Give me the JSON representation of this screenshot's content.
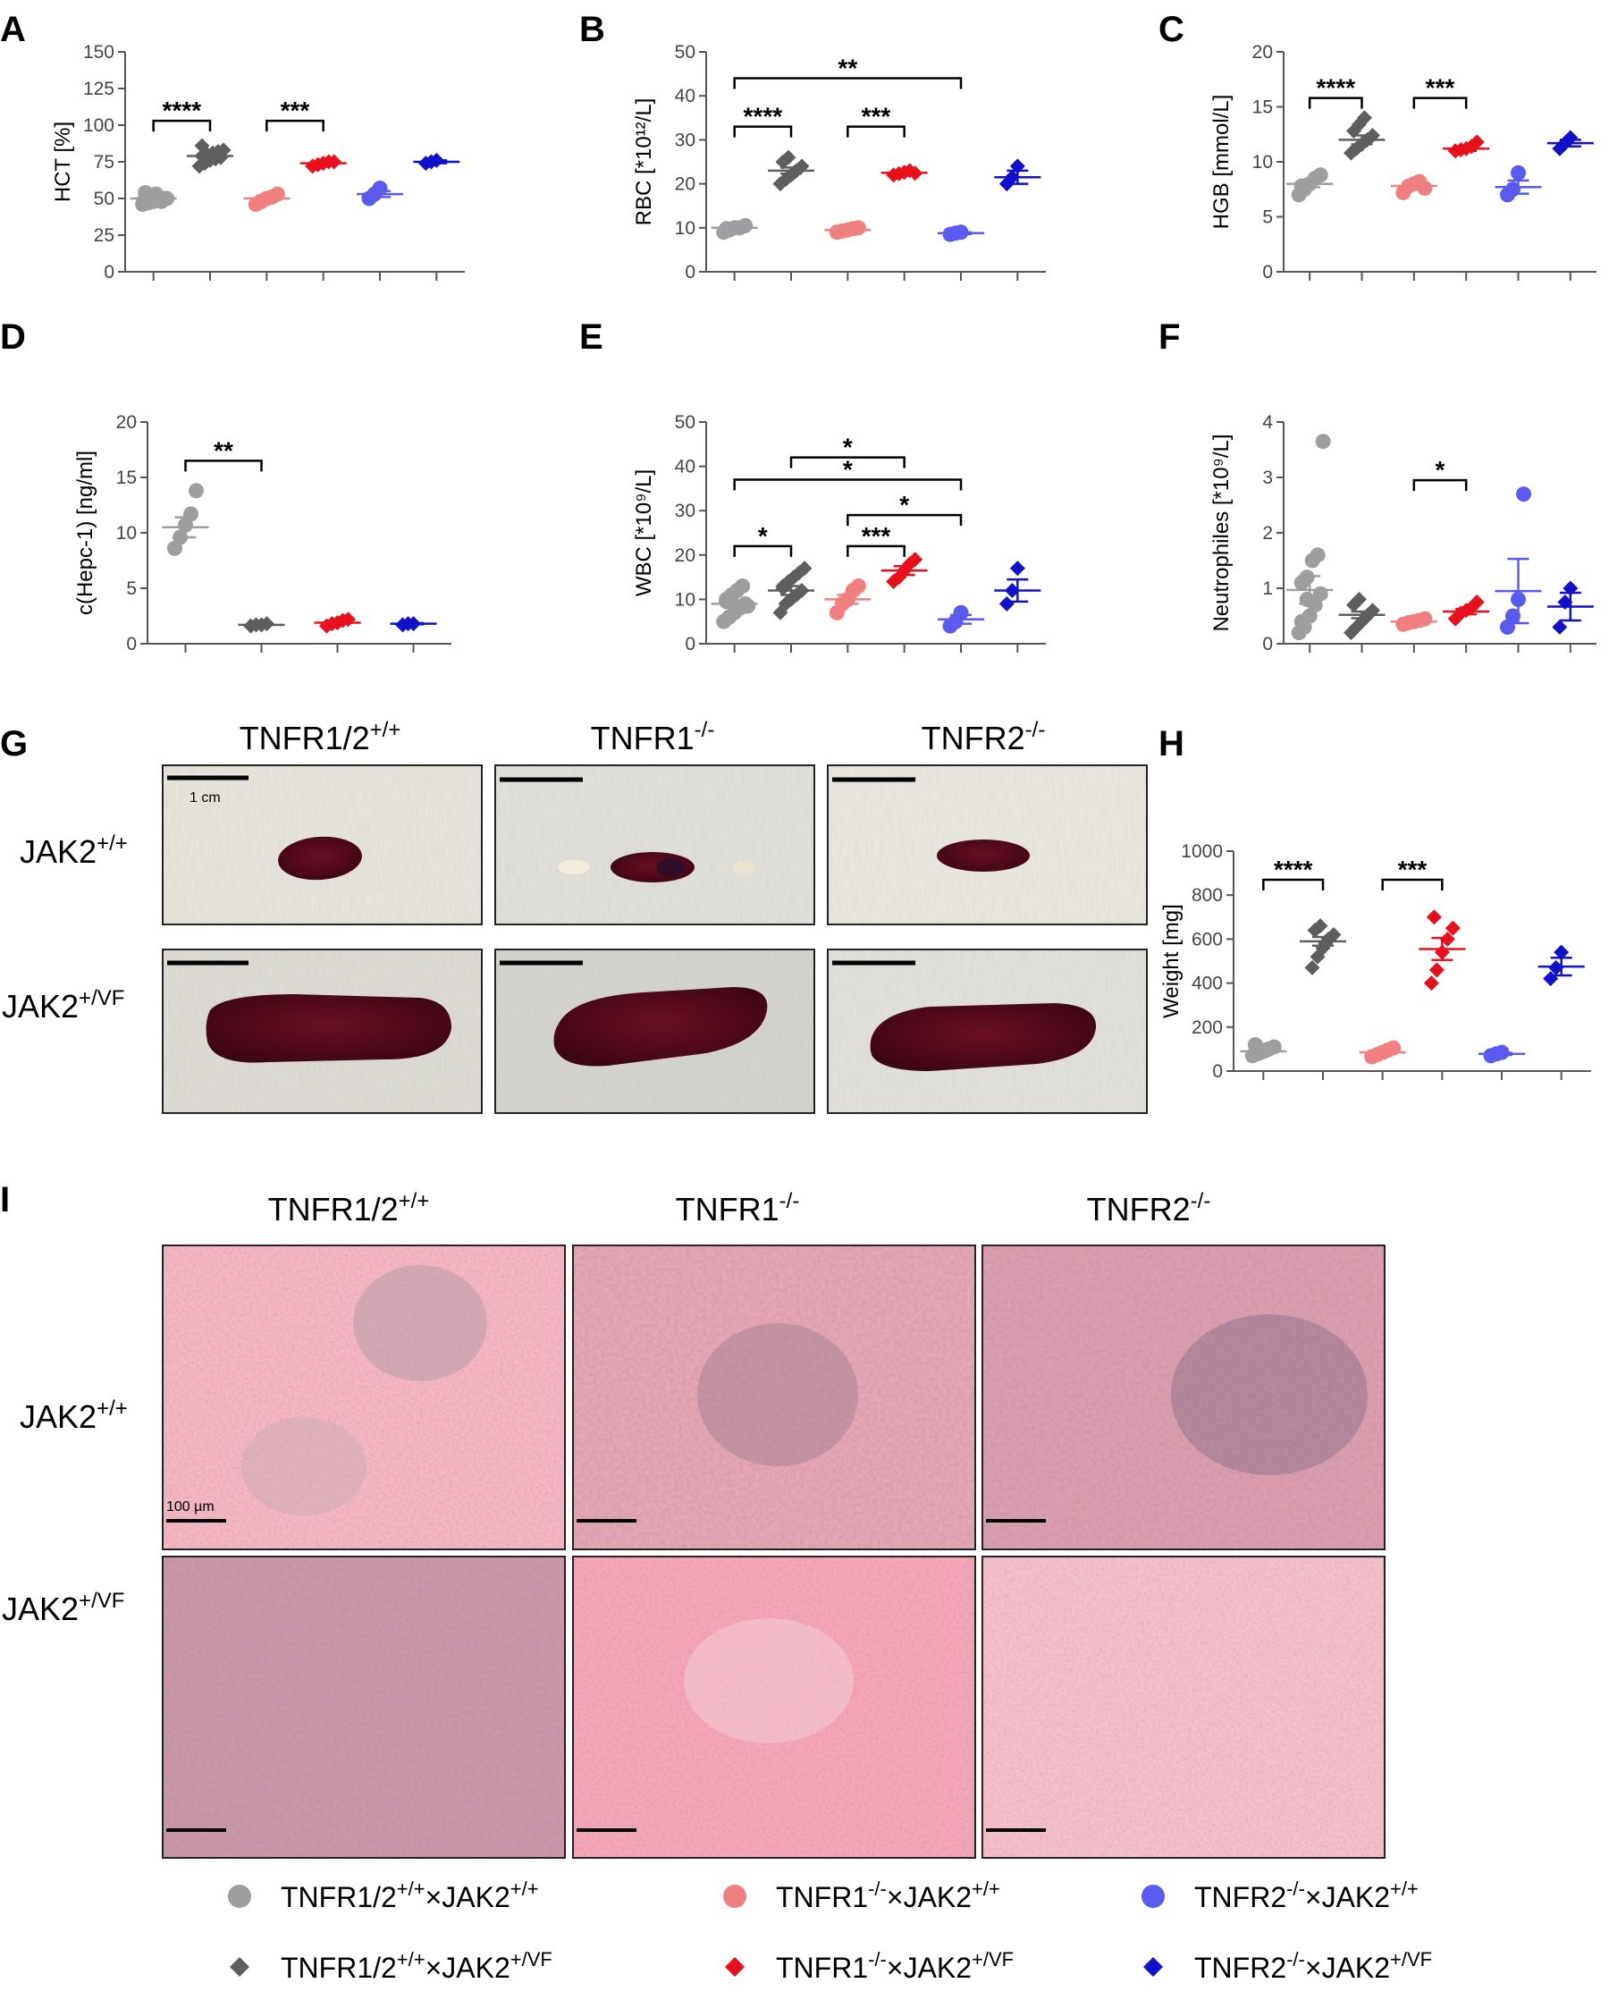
{
  "panel_labels": [
    "A",
    "B",
    "C",
    "D",
    "E",
    "F",
    "G",
    "H",
    "I"
  ],
  "colors": {
    "wt_ctrl": "#9e9ea0",
    "wt_vf": "#5e5e5e",
    "r1_ctrl": "#f08080",
    "r1_vf": "#e8101a",
    "r2_ctrl": "#5a5af0",
    "r2_vf": "#1111cc"
  },
  "chart_data": [
    {
      "panel": "A",
      "type": "scatter",
      "ylabel": "HCT [%]",
      "ylim": [
        0,
        150
      ],
      "yticks": [
        0,
        25,
        50,
        75,
        100,
        125,
        150
      ],
      "groups": [
        {
          "group": "wt_ctrl",
          "mean": 50,
          "sem": 2,
          "values": [
            46,
            47,
            48,
            49,
            50,
            51,
            52,
            53,
            48,
            50,
            54
          ]
        },
        {
          "group": "wt_vf",
          "mean": 79,
          "sem": 2,
          "values": [
            72,
            74,
            76,
            77,
            78,
            79,
            80,
            81,
            82,
            83,
            86
          ]
        },
        {
          "group": "r1_ctrl",
          "mean": 50,
          "sem": 2,
          "values": [
            46,
            48,
            50,
            51,
            53
          ]
        },
        {
          "group": "r1_vf",
          "mean": 74,
          "sem": 1,
          "values": [
            72,
            73,
            74,
            75,
            75
          ]
        },
        {
          "group": "r2_ctrl",
          "mean": 53,
          "sem": 2,
          "values": [
            50,
            53,
            57
          ]
        },
        {
          "group": "r2_vf",
          "mean": 75,
          "sem": 1,
          "values": [
            74,
            75,
            76
          ]
        }
      ],
      "annotations": [
        {
          "from": 0,
          "to": 1,
          "y": 103,
          "text": "****"
        },
        {
          "from": 2,
          "to": 3,
          "y": 103,
          "text": "***"
        }
      ]
    },
    {
      "panel": "B",
      "type": "scatter",
      "ylabel": "RBC [*10¹²/L]",
      "ylim": [
        0,
        50
      ],
      "yticks": [
        0,
        10,
        20,
        30,
        40,
        50
      ],
      "groups": [
        {
          "group": "wt_ctrl",
          "mean": 10,
          "sem": 0.3,
          "values": [
            9,
            9.5,
            10,
            10,
            10.5,
            9.8
          ]
        },
        {
          "group": "wt_vf",
          "mean": 23,
          "sem": 0.7,
          "values": [
            20,
            21,
            22,
            23,
            24,
            25,
            26,
            22.5
          ]
        },
        {
          "group": "r1_ctrl",
          "mean": 9.5,
          "sem": 0.3,
          "values": [
            9,
            9.3,
            9.5,
            9.8,
            10
          ]
        },
        {
          "group": "r1_vf",
          "mean": 22.5,
          "sem": 0.3,
          "values": [
            22,
            22.3,
            22.6,
            23,
            22.4
          ]
        },
        {
          "group": "r2_ctrl",
          "mean": 8.8,
          "sem": 0.2,
          "values": [
            8.5,
            8.8,
            9
          ]
        },
        {
          "group": "r2_vf",
          "mean": 21.5,
          "sem": 1.5,
          "values": [
            20,
            21.5,
            24
          ]
        }
      ],
      "annotations": [
        {
          "from": 0,
          "to": 1,
          "y": 33,
          "text": "****"
        },
        {
          "from": 2,
          "to": 3,
          "y": 33,
          "text": "***"
        },
        {
          "from": 0,
          "to": 4,
          "y": 44,
          "text": "**"
        }
      ]
    },
    {
      "panel": "C",
      "type": "scatter",
      "ylabel": "HGB [mmol/L]",
      "ylim": [
        0,
        20
      ],
      "yticks": [
        0,
        5,
        10,
        15,
        20
      ],
      "groups": [
        {
          "group": "wt_ctrl",
          "mean": 8,
          "sem": 0.3,
          "values": [
            7,
            7.5,
            8,
            8.5,
            8.8,
            7.8
          ]
        },
        {
          "group": "wt_vf",
          "mean": 12,
          "sem": 0.4,
          "values": [
            10.8,
            11.2,
            11.6,
            12,
            12.4,
            12.8,
            13.4,
            14
          ]
        },
        {
          "group": "r1_ctrl",
          "mean": 7.8,
          "sem": 0.3,
          "values": [
            7.2,
            7.8,
            8,
            8.2,
            7.6
          ]
        },
        {
          "group": "r1_vf",
          "mean": 11.2,
          "sem": 0.2,
          "values": [
            11,
            11.1,
            11.2,
            11.4,
            11.8
          ]
        },
        {
          "group": "r2_ctrl",
          "mean": 7.7,
          "sem": 0.6,
          "values": [
            7,
            7.5,
            9
          ]
        },
        {
          "group": "r2_vf",
          "mean": 11.7,
          "sem": 0.3,
          "values": [
            11.2,
            11.7,
            12.2
          ]
        }
      ],
      "annotations": [
        {
          "from": 0,
          "to": 1,
          "y": 15.8,
          "text": "****"
        },
        {
          "from": 2,
          "to": 3,
          "y": 15.8,
          "text": "***"
        }
      ]
    },
    {
      "panel": "D",
      "type": "scatter",
      "ylabel": "c(Hepc-1) [ng/ml]",
      "ylim": [
        0,
        20
      ],
      "yticks": [
        0,
        5,
        10,
        15,
        20
      ],
      "positions": [
        0,
        1,
        2,
        3
      ],
      "groups": [
        {
          "group": "wt_ctrl",
          "mean": 10.5,
          "sem": 0.9,
          "values": [
            8.6,
            9.6,
            10.7,
            11.7,
            13.8
          ]
        },
        {
          "group": "wt_vf",
          "mean": 1.7,
          "sem": 0.05,
          "values": [
            1.6,
            1.7,
            1.7,
            1.8
          ]
        },
        {
          "group": "r1_vf",
          "mean": 1.9,
          "sem": 0.1,
          "values": [
            1.6,
            1.8,
            1.9,
            2.1,
            2.2
          ]
        },
        {
          "group": "r2_vf",
          "mean": 1.8,
          "sem": 0.05,
          "values": [
            1.7,
            1.8,
            1.8
          ]
        }
      ],
      "annotations": [
        {
          "from": 0,
          "to": 1,
          "y": 16.5,
          "text": "**"
        }
      ]
    },
    {
      "panel": "E",
      "type": "scatter",
      "ylabel": "WBC [*10⁹/L]",
      "ylim": [
        0,
        50
      ],
      "yticks": [
        0,
        10,
        20,
        30,
        40,
        50
      ],
      "groups": [
        {
          "group": "wt_ctrl",
          "mean": 9,
          "sem": 0.8,
          "values": [
            5,
            6,
            7,
            8,
            9,
            10,
            11,
            12,
            13,
            8.5,
            9.5
          ]
        },
        {
          "group": "wt_vf",
          "mean": 12,
          "sem": 1,
          "values": [
            7,
            9,
            10,
            11,
            12,
            13,
            14,
            15,
            16,
            17,
            12.5
          ]
        },
        {
          "group": "r1_ctrl",
          "mean": 10,
          "sem": 1,
          "values": [
            7,
            9,
            10,
            12,
            13
          ]
        },
        {
          "group": "r1_vf",
          "mean": 16.5,
          "sem": 1,
          "values": [
            14,
            15,
            16.5,
            18,
            19
          ]
        },
        {
          "group": "r2_ctrl",
          "mean": 5.5,
          "sem": 1,
          "values": [
            4,
            5,
            7
          ]
        },
        {
          "group": "r2_vf",
          "mean": 12,
          "sem": 2.5,
          "values": [
            9,
            12,
            17
          ]
        }
      ],
      "annotations": [
        {
          "from": 0,
          "to": 1,
          "y": 22,
          "text": "*"
        },
        {
          "from": 2,
          "to": 3,
          "y": 22,
          "text": "***"
        },
        {
          "from": 2,
          "to": 4,
          "y": 29,
          "text": "*"
        },
        {
          "from": 0,
          "to": 4,
          "y": 37,
          "text": "*"
        },
        {
          "from": 1,
          "to": 3,
          "y": 42,
          "text": "*"
        }
      ]
    },
    {
      "panel": "F",
      "type": "scatter",
      "ylabel": "Neutrophiles [*10⁹/L]",
      "ylim": [
        0,
        4
      ],
      "yticks": [
        0,
        1,
        2,
        3,
        4
      ],
      "groups": [
        {
          "group": "wt_ctrl",
          "mean": 0.97,
          "sem": 0.25,
          "values": [
            0.2,
            0.3,
            0.5,
            0.7,
            0.9,
            1.1,
            1.2,
            1.5,
            1.6,
            3.65,
            0.4,
            0.8
          ]
        },
        {
          "group": "wt_vf",
          "mean": 0.52,
          "sem": 0.06,
          "values": [
            0.2,
            0.3,
            0.4,
            0.5,
            0.6,
            0.7,
            0.8,
            0.45,
            0.55
          ]
        },
        {
          "group": "r1_ctrl",
          "mean": 0.4,
          "sem": 0.03,
          "values": [
            0.35,
            0.38,
            0.4,
            0.42,
            0.45
          ]
        },
        {
          "group": "r1_vf",
          "mean": 0.58,
          "sem": 0.05,
          "values": [
            0.45,
            0.55,
            0.6,
            0.65,
            0.75
          ]
        },
        {
          "group": "r2_ctrl",
          "mean": 0.95,
          "sem": 0.58,
          "values": [
            0.3,
            0.5,
            0.8,
            2.7
          ]
        },
        {
          "group": "r2_vf",
          "mean": 0.67,
          "sem": 0.25,
          "values": [
            0.3,
            0.75,
            1
          ]
        }
      ],
      "annotations": [
        {
          "from": 2,
          "to": 3,
          "y": 2.95,
          "text": "*"
        }
      ]
    },
    {
      "panel": "H",
      "type": "scatter",
      "ylabel": "Weight [mg]",
      "ylim": [
        0,
        1000
      ],
      "yticks": [
        0,
        200,
        400,
        600,
        800,
        1000
      ],
      "groups": [
        {
          "group": "wt_ctrl",
          "mean": 90,
          "sem": 6,
          "values": [
            70,
            80,
            90,
            100,
            110,
            120,
            85,
            95
          ]
        },
        {
          "group": "wt_vf",
          "mean": 590,
          "sem": 20,
          "values": [
            470,
            520,
            560,
            600,
            620,
            640,
            660,
            580
          ]
        },
        {
          "group": "r1_ctrl",
          "mean": 85,
          "sem": 5,
          "values": [
            65,
            75,
            85,
            95,
            105
          ]
        },
        {
          "group": "r1_vf",
          "mean": 555,
          "sem": 50,
          "values": [
            400,
            460,
            540,
            600,
            650,
            700
          ]
        },
        {
          "group": "r2_ctrl",
          "mean": 78,
          "sem": 5,
          "values": [
            70,
            78,
            85
          ]
        },
        {
          "group": "r2_vf",
          "mean": 475,
          "sem": 40,
          "values": [
            420,
            470,
            540
          ]
        }
      ],
      "annotations": [
        {
          "from": 0,
          "to": 1,
          "y": 870,
          "text": "****"
        },
        {
          "from": 2,
          "to": 3,
          "y": 870,
          "text": "***"
        }
      ]
    }
  ],
  "photo_panel": {
    "col_titles": [
      {
        "base": "TNFR1/2",
        "sup": "+/+"
      },
      {
        "base": "TNFR1",
        "sup": "-/-"
      },
      {
        "base": "TNFR2",
        "sup": "-/-"
      }
    ],
    "row_titles": [
      {
        "base": "JAK2",
        "sup": "+/+"
      },
      {
        "base": "JAK2",
        "sup": "+/VF"
      }
    ],
    "scale_label": "1 cm"
  },
  "histology_panel": {
    "col_titles": [
      {
        "base": "TNFR1/2",
        "sup": "+/+"
      },
      {
        "base": "TNFR1",
        "sup": "-/-"
      },
      {
        "base": "TNFR2",
        "sup": "-/-"
      }
    ],
    "row_titles": [
      {
        "base": "JAK2",
        "sup": "+/+"
      },
      {
        "base": "JAK2",
        "sup": "+/VF"
      }
    ],
    "scale_label": "100 µm"
  },
  "legend": [
    {
      "group": "wt_ctrl",
      "marker": "circle",
      "a": "TNFR1/2",
      "asup": "+/+",
      "b": "×JAK2",
      "bsup": "+/+"
    },
    {
      "group": "r1_ctrl",
      "marker": "circle",
      "a": "TNFR1",
      "asup": "-/-",
      "b": "×JAK2",
      "bsup": "+/+"
    },
    {
      "group": "r2_ctrl",
      "marker": "circle",
      "a": "TNFR2",
      "asup": "-/-",
      "b": "×JAK2",
      "bsup": "+/+"
    },
    {
      "group": "wt_vf",
      "marker": "diamond",
      "a": "TNFR1/2",
      "asup": "+/+",
      "b": "×JAK2",
      "bsup": "+/VF"
    },
    {
      "group": "r1_vf",
      "marker": "diamond",
      "a": "TNFR1",
      "asup": "-/-",
      "b": "×JAK2",
      "bsup": "+/VF"
    },
    {
      "group": "r2_vf",
      "marker": "diamond",
      "a": "TNFR2",
      "asup": "-/-",
      "b": "×JAK2",
      "bsup": "+/VF"
    }
  ]
}
